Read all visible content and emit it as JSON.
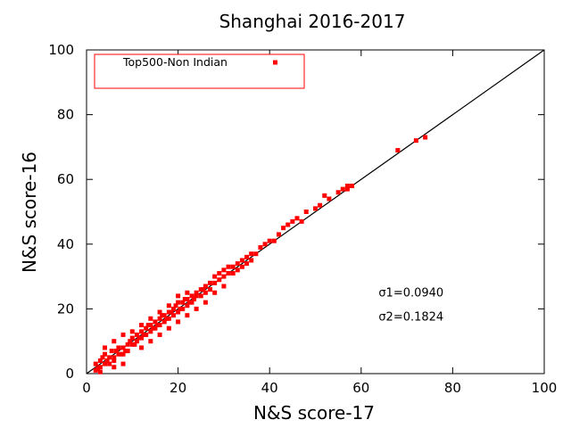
{
  "chart_data": {
    "type": "scatter",
    "title": "Shanghai 2016-2017",
    "xlabel": "N&S score-17",
    "ylabel": "N&S score-16",
    "xlim": [
      0,
      100
    ],
    "ylim": [
      0,
      100
    ],
    "xticks": [
      0,
      20,
      40,
      60,
      80,
      100
    ],
    "yticks": [
      0,
      20,
      40,
      60,
      80,
      100
    ],
    "grid": false,
    "legend_position": "top-left",
    "series": [
      {
        "name": "Top500-Non Indian",
        "color": "#ff0000",
        "points": [
          [
            2,
            3
          ],
          [
            2.5,
            1.5
          ],
          [
            3,
            4
          ],
          [
            3,
            2
          ],
          [
            3.5,
            5
          ],
          [
            4,
            3
          ],
          [
            4,
            6
          ],
          [
            4.5,
            4
          ],
          [
            5,
            5
          ],
          [
            5,
            3
          ],
          [
            5.5,
            7
          ],
          [
            6,
            5
          ],
          [
            6,
            4
          ],
          [
            6.5,
            7
          ],
          [
            7,
            6
          ],
          [
            7,
            8
          ],
          [
            7.5,
            6
          ],
          [
            8,
            8
          ],
          [
            8,
            6
          ],
          [
            8.5,
            7
          ],
          [
            9,
            9
          ],
          [
            9,
            7
          ],
          [
            9.5,
            10
          ],
          [
            10,
            9
          ],
          [
            10,
            11
          ],
          [
            10.5,
            9
          ],
          [
            11,
            12
          ],
          [
            11,
            10
          ],
          [
            11.5,
            11
          ],
          [
            12,
            13
          ],
          [
            12,
            11
          ],
          [
            12.5,
            12
          ],
          [
            13,
            14
          ],
          [
            13,
            12
          ],
          [
            13.5,
            15
          ],
          [
            14,
            13
          ],
          [
            14,
            15
          ],
          [
            14.5,
            14
          ],
          [
            15,
            16
          ],
          [
            15,
            14
          ],
          [
            15.5,
            15
          ],
          [
            16,
            17
          ],
          [
            16,
            15
          ],
          [
            16.5,
            18
          ],
          [
            17,
            16
          ],
          [
            17,
            18
          ],
          [
            17.5,
            17
          ],
          [
            18,
            19
          ],
          [
            18,
            17
          ],
          [
            18.5,
            19
          ],
          [
            19,
            20
          ],
          [
            19,
            18
          ],
          [
            19.5,
            21
          ],
          [
            20,
            19
          ],
          [
            20,
            22
          ],
          [
            20.5,
            20
          ],
          [
            21,
            22
          ],
          [
            21,
            20
          ],
          [
            21.5,
            23
          ],
          [
            22,
            21
          ],
          [
            22,
            23
          ],
          [
            22.5,
            22
          ],
          [
            23,
            24
          ],
          [
            23,
            22
          ],
          [
            23.5,
            23
          ],
          [
            24,
            25
          ],
          [
            24,
            24
          ],
          [
            25,
            26
          ],
          [
            25,
            24
          ],
          [
            25.5,
            26
          ],
          [
            26,
            27
          ],
          [
            26,
            25
          ],
          [
            27,
            28
          ],
          [
            27,
            26
          ],
          [
            28,
            28
          ],
          [
            28,
            30
          ],
          [
            29,
            29
          ],
          [
            29,
            31
          ],
          [
            30,
            32
          ],
          [
            30,
            30
          ],
          [
            31,
            31
          ],
          [
            31,
            33
          ],
          [
            32,
            33
          ],
          [
            32,
            31
          ],
          [
            33,
            32
          ],
          [
            33,
            34
          ],
          [
            34,
            35
          ],
          [
            34,
            33
          ],
          [
            35,
            36
          ],
          [
            35,
            34
          ],
          [
            36,
            37
          ],
          [
            36,
            35
          ],
          [
            37,
            37
          ],
          [
            38,
            39
          ],
          [
            39,
            40
          ],
          [
            40,
            41
          ],
          [
            41,
            41
          ],
          [
            42,
            43
          ],
          [
            43,
            45
          ],
          [
            44,
            46
          ],
          [
            45,
            47
          ],
          [
            46,
            48
          ],
          [
            47,
            47
          ],
          [
            48,
            50
          ],
          [
            50,
            51
          ],
          [
            51,
            52
          ],
          [
            52,
            55
          ],
          [
            53,
            54
          ],
          [
            55,
            56
          ],
          [
            56,
            57
          ],
          [
            57,
            58
          ],
          [
            57,
            57
          ],
          [
            58,
            58
          ],
          [
            68,
            69
          ],
          [
            72,
            72
          ],
          [
            74,
            73
          ],
          [
            2,
            1
          ],
          [
            3,
            0.5
          ],
          [
            6,
            2
          ],
          [
            8,
            3
          ],
          [
            12,
            8
          ],
          [
            14,
            10
          ],
          [
            16,
            12
          ],
          [
            18,
            14
          ],
          [
            20,
            16
          ],
          [
            22,
            18
          ],
          [
            24,
            20
          ],
          [
            26,
            22
          ],
          [
            28,
            25
          ],
          [
            30,
            27
          ],
          [
            4,
            8
          ],
          [
            6,
            10
          ],
          [
            8,
            12
          ],
          [
            10,
            13
          ],
          [
            12,
            15
          ],
          [
            14,
            17
          ],
          [
            16,
            19
          ],
          [
            18,
            21
          ],
          [
            20,
            24
          ],
          [
            22,
            25
          ]
        ]
      },
      {
        "name": "",
        "type": "line",
        "color": "#000000",
        "points": [
          [
            0,
            0
          ],
          [
            100,
            100
          ]
        ]
      }
    ],
    "annotations": [
      {
        "text": "σ1=0.0940",
        "x": 64,
        "y": 25
      },
      {
        "text": "σ2=0.1824",
        "x": 64,
        "y": 17.5
      }
    ]
  }
}
